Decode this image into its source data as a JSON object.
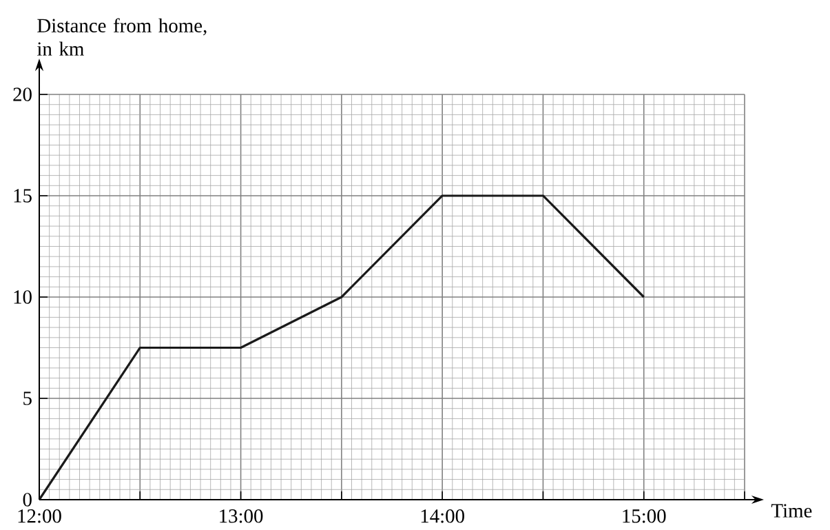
{
  "chart_data": {
    "type": "line",
    "xlabel": "Time",
    "ylabel": "Distance from home, in km",
    "x": [
      12,
      12.5,
      13,
      13.5,
      14,
      14.5,
      15
    ],
    "series": [
      {
        "color": "#1a1a1a",
        "values": [
          0,
          7.5,
          7.5,
          10,
          15,
          15,
          10
        ]
      }
    ],
    "xlim": [
      12,
      15.5
    ],
    "ylim": [
      0,
      20
    ],
    "xticks": [
      {
        "value": 12,
        "label": "12:00"
      },
      {
        "value": 12.5,
        "label": null
      },
      {
        "value": 13,
        "label": "13:00"
      },
      {
        "value": 13.5,
        "label": null
      },
      {
        "value": 14,
        "label": "14:00"
      },
      {
        "value": 14.5,
        "label": null
      },
      {
        "value": 15,
        "label": "15:00"
      },
      {
        "value": 15.5,
        "label": null
      }
    ],
    "yticks": [
      0,
      5,
      10,
      15,
      20
    ],
    "grid": true,
    "marker": "none",
    "line_style": "solid"
  }
}
